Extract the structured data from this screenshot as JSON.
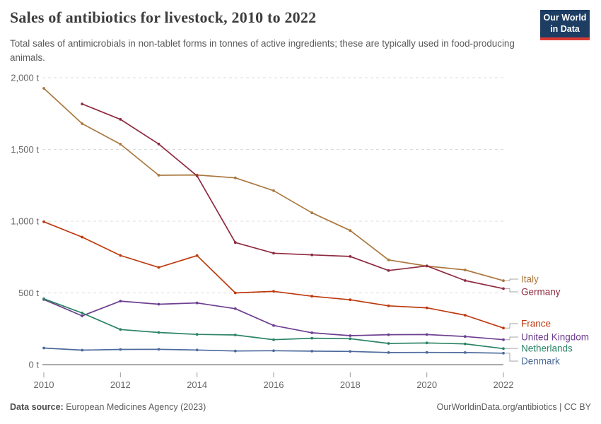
{
  "header": {
    "title": "Sales of antibiotics for livestock, 2010 to 2022",
    "subtitle": "Total sales of antimicrobials in non-tablet forms in tonnes of active ingredients; these are typically used in food-producing animals.",
    "logo": {
      "line1": "Our World",
      "line2": "in Data"
    }
  },
  "footer": {
    "source_label": "Data source:",
    "source_text": "European Medicines Agency (2023)",
    "credit": "OurWorldinData.org/antibiotics | CC BY"
  },
  "colors": {
    "background": "#ffffff",
    "grid": "#dcdcdc",
    "axis": "#8e8e8e",
    "tick_text": "#666666",
    "connector": "#a6a6a6",
    "logo_bg": "#1d3d63",
    "logo_underline": "#d93a34"
  },
  "chart_data": {
    "type": "line",
    "title": "Sales of antibiotics for livestock, 2010 to 2022",
    "unit": "tonnes of active ingredients",
    "x": [
      2010,
      2011,
      2012,
      2013,
      2014,
      2015,
      2016,
      2017,
      2018,
      2019,
      2020,
      2021,
      2022
    ],
    "series": [
      {
        "name": "Italy",
        "color": "#AA783E",
        "values": [
          1926,
          1680,
          1537,
          1320,
          1322,
          1302,
          1213,
          1058,
          935,
          730,
          687,
          660,
          585
        ]
      },
      {
        "name": "Germany",
        "color": "#8F2A40",
        "values": [
          null,
          1817,
          1710,
          1538,
          1316,
          851,
          777,
          765,
          754,
          656,
          688,
          586,
          530
        ]
      },
      {
        "name": "France",
        "color": "#BE3A0E",
        "values": [
          996,
          889,
          761,
          678,
          760,
          500,
          511,
          477,
          452,
          410,
          396,
          345,
          255
        ]
      },
      {
        "name": "United Kingdom",
        "color": "#6D3E91",
        "values": [
          454,
          340,
          443,
          421,
          430,
          390,
          273,
          222,
          202,
          209,
          210,
          196,
          174
        ]
      },
      {
        "name": "Netherlands",
        "color": "#2C8465",
        "values": [
          459,
          360,
          245,
          224,
          211,
          207,
          174,
          184,
          181,
          148,
          151,
          145,
          112
        ]
      },
      {
        "name": "Denmark",
        "color": "#4C6A9C",
        "values": [
          116,
          101,
          106,
          107,
          102,
          95,
          97,
          94,
          92,
          84,
          85,
          84,
          80
        ]
      }
    ],
    "ylim": [
      0,
      2000
    ],
    "yticks": {
      "values": [
        0,
        500,
        1000,
        1500,
        2000
      ],
      "labels": [
        "0 t",
        "500 t",
        "1,000 t",
        "1,500 t",
        "2,000 t"
      ]
    },
    "xticks": [
      2010,
      2012,
      2014,
      2016,
      2018,
      2020,
      2022
    ],
    "grid": "horizontal-dashed",
    "legend_position": "right-edge-labels"
  }
}
